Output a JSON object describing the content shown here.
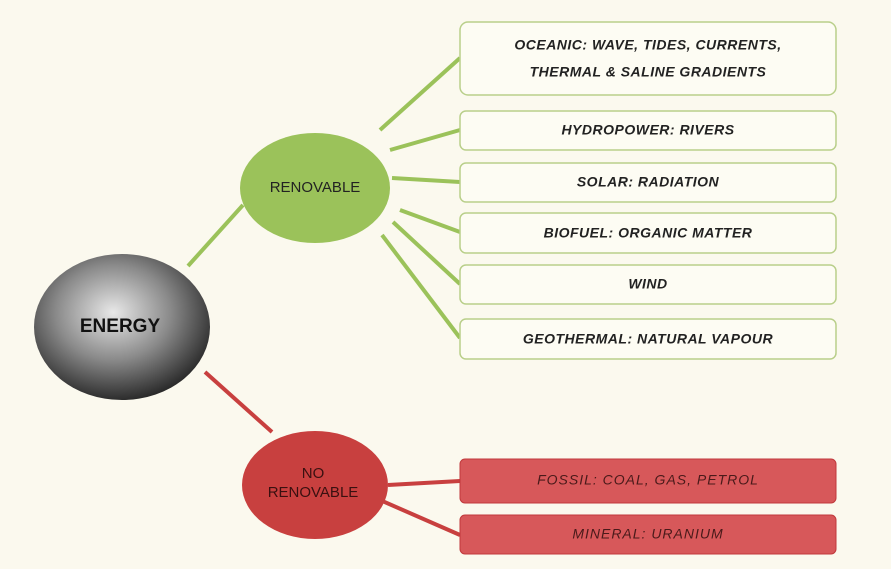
{
  "root": {
    "label": "ENERGY"
  },
  "branches": [
    {
      "label": [
        "RENOVABLE"
      ],
      "items": [
        {
          "lines": [
            "OCEANIC: WAVE, TIDES, CURRENTS,",
            "THERMAL & SALINE GRADIENTS"
          ]
        },
        {
          "lines": [
            "HYDROPOWER: RIVERS"
          ]
        },
        {
          "lines": [
            "SOLAR: RADIATION"
          ]
        },
        {
          "lines": [
            "BIOFUEL: ORGANIC MATTER"
          ]
        },
        {
          "lines": [
            "WIND"
          ]
        },
        {
          "lines": [
            "GEOTHERMAL: NATURAL VAPOUR"
          ]
        }
      ]
    },
    {
      "label": [
        "NO",
        "RENOVABLE"
      ],
      "items": [
        {
          "lines": [
            "FOSSIL: COAL, GAS, PETROL"
          ]
        },
        {
          "lines": [
            "MINERAL: URANIUM"
          ]
        }
      ]
    }
  ]
}
